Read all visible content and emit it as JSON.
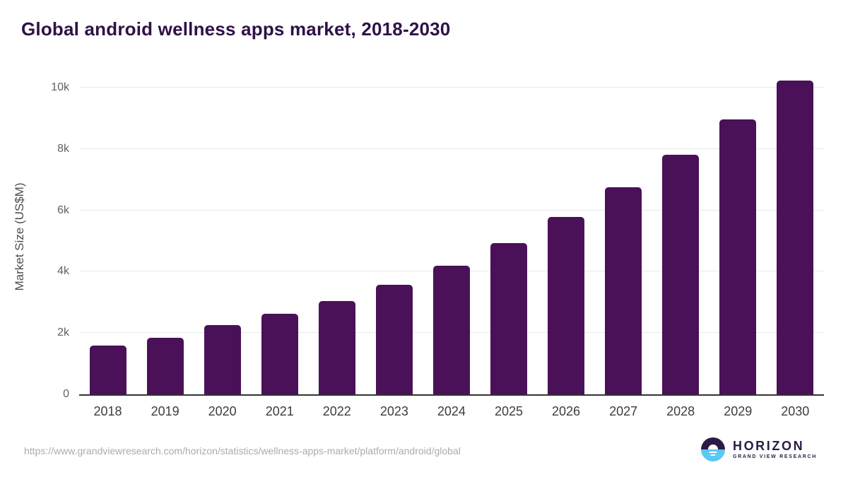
{
  "title": "Global android wellness apps market, 2018-2030",
  "chart_data": {
    "type": "bar",
    "title": "Global android wellness apps market, 2018-2030",
    "categories": [
      "2018",
      "2019",
      "2020",
      "2021",
      "2022",
      "2023",
      "2024",
      "2025",
      "2026",
      "2027",
      "2028",
      "2029",
      "2030"
    ],
    "values": [
      1600,
      1850,
      2250,
      2620,
      3050,
      3560,
      4200,
      4930,
      5780,
      6750,
      7810,
      8970,
      10230
    ],
    "xlabel": "",
    "ylabel": "Market Size (US$M)",
    "ylim": [
      0,
      10300
    ],
    "yticks": [
      {
        "value": 0,
        "label": "0"
      },
      {
        "value": 2000,
        "label": "2k"
      },
      {
        "value": 4000,
        "label": "4k"
      },
      {
        "value": 6000,
        "label": "6k"
      },
      {
        "value": 8000,
        "label": "8k"
      },
      {
        "value": 10000,
        "label": "10k"
      }
    ],
    "grid": "horizontal",
    "legend": "none",
    "bar_color": "#4a1158"
  },
  "colors": {
    "bar": "#4a1158",
    "title": "#2f1147",
    "gridline": "#e8e8e8",
    "axis_line": "#333333",
    "tick_label": "#616161",
    "x_label": "#3d3d3d",
    "url_text": "#ababab",
    "logo_purple": "#2b1b45",
    "logo_blue": "#5ac8f5"
  },
  "footer": {
    "source_url": "https://www.grandviewresearch.com/horizon/statistics/wellness-apps-market/platform/android/global",
    "logo": {
      "name": "HORIZON",
      "subtitle": "GRAND VIEW RESEARCH"
    }
  }
}
